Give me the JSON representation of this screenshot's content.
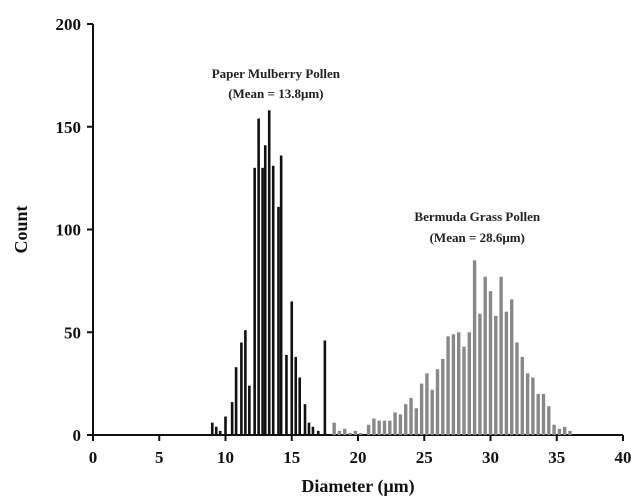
{
  "chart_data": {
    "type": "bar",
    "xlabel": "Diameter (μm)",
    "ylabel": "Count",
    "xlim": [
      0,
      40
    ],
    "ylim": [
      0,
      200
    ],
    "xticks": [
      "0",
      "5",
      "10",
      "15",
      "20",
      "25",
      "30",
      "35",
      "40"
    ],
    "yticks": [
      "0",
      "50",
      "100",
      "150",
      "200"
    ],
    "grid": false,
    "series": [
      {
        "color": "#111111",
        "x": [
          9.0,
          9.3,
          9.6,
          10.0,
          10.5,
          10.8,
          11.2,
          11.5,
          11.8,
          12.2,
          12.5,
          12.8,
          13.0,
          13.3,
          13.6,
          14.0,
          14.2,
          14.6,
          15.0,
          15.3,
          15.6,
          16.0,
          16.3,
          16.6,
          17.0,
          17.5
        ],
        "values": [
          6,
          4,
          2,
          9,
          16,
          33,
          45,
          51,
          24,
          130,
          154,
          130,
          141,
          158,
          131,
          111,
          136,
          39,
          65,
          38,
          28,
          15,
          6,
          4,
          2,
          46
        ]
      },
      {
        "color": "#888888",
        "x": [
          18.2,
          18.6,
          19.0,
          19.4,
          19.8,
          20.2,
          20.8,
          21.2,
          21.6,
          22.0,
          22.4,
          22.8,
          23.2,
          23.6,
          24.0,
          24.4,
          24.8,
          25.2,
          25.6,
          26.0,
          26.4,
          26.8,
          27.2,
          27.6,
          28.0,
          28.4,
          28.8,
          29.2,
          29.6,
          30.0,
          30.4,
          30.8,
          31.2,
          31.6,
          32.0,
          32.4,
          32.8,
          33.2,
          33.6,
          34.0,
          34.4,
          34.8,
          35.2,
          35.6,
          36.0
        ],
        "values": [
          6,
          2,
          3,
          1,
          2,
          1,
          5,
          8,
          7,
          7,
          7,
          11,
          10,
          15,
          18,
          13,
          25,
          30,
          22,
          32,
          37,
          48,
          49,
          50,
          43,
          50,
          85,
          59,
          77,
          70,
          58,
          77,
          60,
          66,
          45,
          38,
          30,
          28,
          20,
          20,
          14,
          5,
          3,
          4,
          2
        ]
      }
    ],
    "annotations": [
      {
        "lines": [
          "Paper Mulberry Pollen",
          "(Mean = 13.8μm)"
        ]
      },
      {
        "lines": [
          "Bermuda Grass Pollen",
          "(Mean = 28.6μm)"
        ]
      }
    ]
  }
}
